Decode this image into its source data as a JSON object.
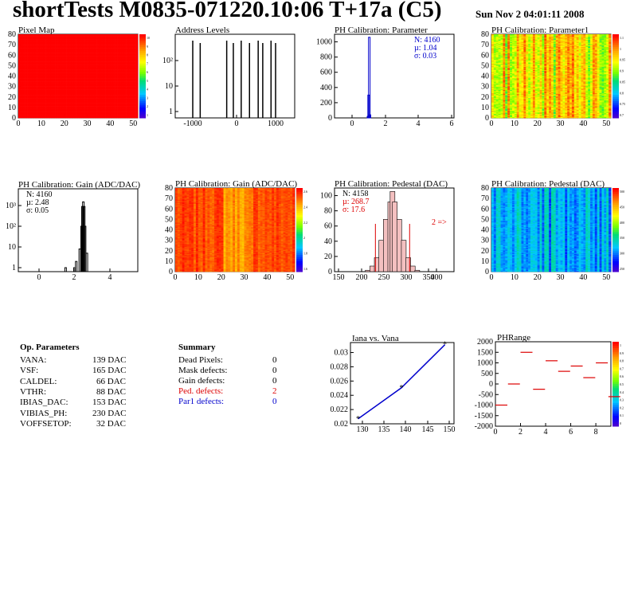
{
  "header": {
    "title": "shortTests M0835-071220.10:06 T+17a (C5)",
    "date": "Sun Nov  2 04:01:11 2008"
  },
  "colors": {
    "blue": "#0000cc",
    "red": "#dd0000"
  },
  "panels": [
    {
      "id": "pixel-map",
      "title": "Pixel Map",
      "xticks": [
        "0",
        "10",
        "20",
        "30",
        "40",
        "50"
      ],
      "yticks": [
        "0",
        "10",
        "20",
        "30",
        "40",
        "50",
        "60",
        "70",
        "80"
      ],
      "zticks": [
        "10",
        "9",
        "8",
        "7",
        "6",
        "5",
        "4",
        "3",
        "2",
        "1"
      ]
    },
    {
      "id": "address-levels",
      "title": "Address Levels",
      "xticks": [
        "-1000",
        "0",
        "1000"
      ],
      "yticks": [
        "1",
        "10",
        "10²"
      ]
    },
    {
      "id": "ph-param",
      "title": "PH Calibration: Parameter",
      "xticks": [
        "0",
        "2",
        "4",
        "6"
      ],
      "yticks": [
        "0",
        "200",
        "400",
        "600",
        "800",
        "1000"
      ],
      "stats": [
        "N: 4160",
        "µ: 1.04",
        "σ: 0.03"
      ]
    },
    {
      "id": "ph-param1",
      "title": "PH Calibration: Parameter1",
      "xticks": [
        "0",
        "10",
        "20",
        "30",
        "40",
        "50"
      ],
      "yticks": [
        "0",
        "10",
        "20",
        "30",
        "40",
        "50",
        "60",
        "70",
        "80"
      ],
      "zticks": [
        "1.1",
        "1",
        "0.95",
        "0.9",
        "0.85",
        "0.8",
        "0.75",
        "0.7"
      ]
    },
    {
      "id": "ph-gain-hist",
      "title": "PH Calibration: Gain (ADC/DAC)",
      "xticks": [
        "0",
        "2",
        "4"
      ],
      "yticks": [
        "1",
        "10",
        "10²",
        "10³"
      ],
      "stats": [
        "N: 4160",
        "µ: 2.48",
        "σ: 0.05"
      ]
    },
    {
      "id": "ph-gain-map",
      "title": "PH Calibration: Gain (ADC/DAC)",
      "xticks": [
        "0",
        "10",
        "20",
        "30",
        "40",
        "50"
      ],
      "yticks": [
        "0",
        "10",
        "20",
        "30",
        "40",
        "50",
        "60",
        "70",
        "80"
      ],
      "zticks": [
        "2.6",
        "2.4",
        "2.2",
        "2",
        "1.8",
        "1.6"
      ]
    },
    {
      "id": "ph-ped-hist",
      "title": "PH Calibration: Pedestal (DAC)",
      "xticks": [
        "150",
        "200",
        "250",
        "300",
        "350",
        "400"
      ],
      "yticks": [
        "0",
        "20",
        "40",
        "60",
        "80",
        "100"
      ],
      "stats": [
        "N: 4158",
        "µ: 268.7",
        "σ: 17.6"
      ],
      "note": "2 =>"
    },
    {
      "id": "ph-ped-map",
      "title": "PH Calibration: Pedestal (DAC)",
      "xticks": [
        "0",
        "10",
        "20",
        "30",
        "40",
        "50"
      ],
      "yticks": [
        "0",
        "10",
        "20",
        "30",
        "40",
        "50",
        "60",
        "70",
        "80"
      ],
      "zticks": [
        "500",
        "450",
        "400",
        "350",
        "300",
        "250"
      ]
    },
    {
      "id": "iana-vana",
      "title": "Iana vs. Vana",
      "xticks": [
        "130",
        "135",
        "140",
        "145",
        "150"
      ],
      "yticks": [
        "0.02",
        "0.022",
        "0.024",
        "0.026",
        "0.028",
        "0.03"
      ]
    },
    {
      "id": "phrange",
      "title": "PHRange",
      "xticks": [
        "0",
        "2",
        "4",
        "6",
        "8"
      ],
      "yticks": [
        "2000",
        "1500",
        "1000",
        "500",
        "0",
        "-500",
        "-1000",
        "-1500",
        "-2000"
      ],
      "zticks": [
        "1",
        "0.9",
        "0.8",
        "0.7",
        "0.6",
        "0.5",
        "0.4",
        "0.3",
        "0.2",
        "0.1",
        "0"
      ]
    }
  ],
  "op_params": {
    "title": "Op. Parameters",
    "rows": [
      {
        "name": "VANA:",
        "value": "139 DAC"
      },
      {
        "name": "VSF:",
        "value": "165 DAC"
      },
      {
        "name": "CALDEL:",
        "value": "66 DAC"
      },
      {
        "name": "VTHR:",
        "value": "88 DAC"
      },
      {
        "name": "IBIAS_DAC:",
        "value": "153 DAC"
      },
      {
        "name": "VIBIAS_PH:",
        "value": "230 DAC"
      },
      {
        "name": "VOFFSETOP:",
        "value": "32 DAC"
      }
    ]
  },
  "summary": {
    "title": "Summary",
    "rows": [
      {
        "name": "Dead Pixels:",
        "value": "0",
        "color": "black"
      },
      {
        "name": "Mask defects:",
        "value": "0",
        "color": "black"
      },
      {
        "name": "Gain defects:",
        "value": "0",
        "color": "black"
      },
      {
        "name": "Ped. defects:",
        "value": "2",
        "color": "red"
      },
      {
        "name": "Par1 defects:",
        "value": "0",
        "color": "blue"
      }
    ]
  },
  "chart_data": [
    {
      "type": "heatmap",
      "title": "Pixel Map",
      "xlim": [
        0,
        52
      ],
      "ylim": [
        0,
        80
      ],
      "zlim": [
        0,
        10
      ],
      "values": "uniform 10 (all pixels)"
    },
    {
      "type": "bar",
      "title": "Address Levels",
      "yscale": "log",
      "x": [
        -1000,
        -820,
        -180,
        -20,
        170,
        370,
        580,
        690,
        890,
        1000
      ],
      "values": [
        250,
        250,
        250,
        250,
        250,
        250,
        250,
        250,
        250,
        250
      ]
    },
    {
      "type": "bar",
      "title": "PH Calibration: Parameter",
      "x": [
        0.96,
        1.0,
        1.04,
        1.08
      ],
      "values": [
        20,
        300,
        1060,
        40
      ],
      "xlim": [
        -1,
        6
      ],
      "ylim": [
        0,
        1100
      ]
    },
    {
      "type": "heatmap",
      "title": "PH Calibration: Parameter1",
      "xlim": [
        0,
        52
      ],
      "ylim": [
        0,
        80
      ],
      "zlim": [
        0.7,
        1.1
      ]
    },
    {
      "type": "bar",
      "title": "PH Calibration: Gain (ADC/DAC)",
      "yscale": "log",
      "x": [
        1.5,
        2.0,
        2.1,
        2.3,
        2.4,
        2.45,
        2.5,
        2.55,
        2.6,
        2.7
      ],
      "values": [
        1,
        1,
        2,
        8,
        100,
        900,
        1500,
        900,
        100,
        5
      ],
      "xlim": [
        -1,
        5.5
      ]
    },
    {
      "type": "heatmap",
      "title": "PH Calibration: Gain (ADC/DAC)",
      "xlim": [
        0,
        52
      ],
      "ylim": [
        0,
        80
      ],
      "zlim": [
        1.5,
        2.7
      ]
    },
    {
      "type": "bar",
      "title": "PH Calibration: Pedestal (DAC)",
      "x": [
        215,
        225,
        235,
        245,
        255,
        265,
        270,
        275,
        285,
        295,
        305,
        315,
        325
      ],
      "values": [
        2,
        8,
        20,
        45,
        75,
        100,
        115,
        100,
        75,
        45,
        20,
        8,
        2
      ],
      "xlim": [
        150,
        425
      ],
      "ylim": [
        0,
        120
      ]
    },
    {
      "type": "heatmap",
      "title": "PH Calibration: Pedestal (DAC)",
      "xlim": [
        0,
        52
      ],
      "ylim": [
        0,
        80
      ],
      "zlim": [
        220,
        500
      ]
    },
    {
      "type": "line",
      "title": "Iana vs. Vana",
      "x": [
        129,
        139,
        149
      ],
      "values": [
        0.0197,
        0.0241,
        0.0302
      ]
    },
    {
      "type": "scatter",
      "title": "PHRange",
      "x": [
        0,
        1,
        2,
        3,
        4,
        5,
        6,
        7,
        8,
        9
      ],
      "values": [
        -1000,
        0,
        1500,
        -250,
        1100,
        600,
        850,
        300,
        1000,
        -600
      ],
      "xlim": [
        0,
        9
      ],
      "ylim": [
        -2000,
        2000
      ]
    }
  ]
}
